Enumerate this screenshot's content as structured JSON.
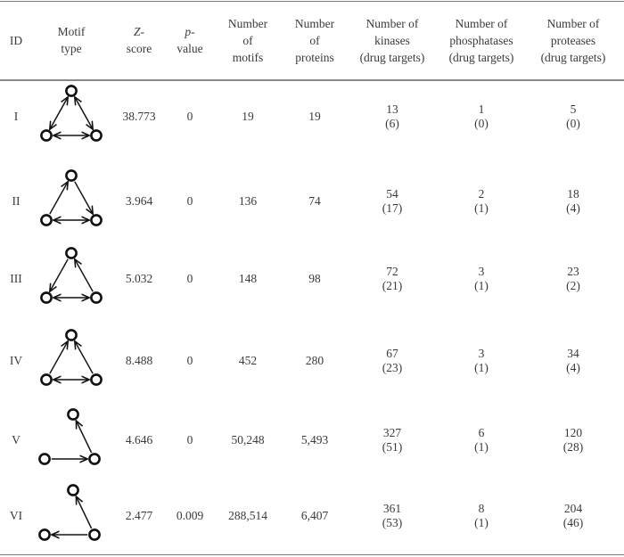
{
  "headers": {
    "id": "ID",
    "motif_type": [
      "Motif",
      "type"
    ],
    "z_score": [
      "Z-",
      "score"
    ],
    "p_value": [
      "p-",
      "value"
    ],
    "num_motifs": [
      "Number",
      "of",
      "motifs"
    ],
    "num_proteins": [
      "Number",
      "of",
      "proteins"
    ],
    "kinases": [
      "Number of",
      "kinases",
      "(drug targets)"
    ],
    "phosphatases": [
      "Number of",
      "phosphatases",
      "(drug targets)"
    ],
    "proteases": [
      "Number of",
      "proteases",
      "(drug targets)"
    ]
  },
  "rows": [
    {
      "id": "I",
      "motif": "triangle-bidirectional-all",
      "z": "38.773",
      "p": "0",
      "motifs": "19",
      "proteins": "19",
      "kinases": "13",
      "kinases_dt": "(6)",
      "phosphatases": "1",
      "phosphatases_dt": "(0)",
      "proteases": "5",
      "proteases_dt": "(0)"
    },
    {
      "id": "II",
      "motif": "triangle-up-apex",
      "z": "3.964",
      "p": "0",
      "motifs": "136",
      "proteins": "74",
      "kinases": "54",
      "kinases_dt": "(17)",
      "phosphatases": "2",
      "phosphatases_dt": "(1)",
      "proteases": "18",
      "proteases_dt": "(4)"
    },
    {
      "id": "III",
      "motif": "triangle-down-apex",
      "z": "5.032",
      "p": "0",
      "motifs": "148",
      "proteins": "98",
      "kinases": "72",
      "kinases_dt": "(21)",
      "phosphatases": "3",
      "phosphatases_dt": "(1)",
      "proteases": "23",
      "proteases_dt": "(2)"
    },
    {
      "id": "IV",
      "motif": "triangle-both-to-apex",
      "z": "8.488",
      "p": "0",
      "motifs": "452",
      "proteins": "280",
      "kinases": "67",
      "kinases_dt": "(23)",
      "phosphatases": "3",
      "phosphatases_dt": "(1)",
      "proteases": "34",
      "proteases_dt": "(4)"
    },
    {
      "id": "V",
      "motif": "path-right-to-top",
      "z": "4.646",
      "p": "0",
      "motifs": "50,248",
      "proteins": "5,493",
      "kinases": "327",
      "kinases_dt": "(51)",
      "phosphatases": "6",
      "phosphatases_dt": "(1)",
      "proteases": "120",
      "proteases_dt": "(28)"
    },
    {
      "id": "VI",
      "motif": "path-right-to-left-and-top",
      "z": "2.477",
      "p": "0.009",
      "motifs": "288,514",
      "proteins": "6,407",
      "kinases": "361",
      "kinases_dt": "(53)",
      "phosphatases": "8",
      "phosphatases_dt": "(1)",
      "proteases": "204",
      "proteases_dt": "(46)"
    }
  ]
}
